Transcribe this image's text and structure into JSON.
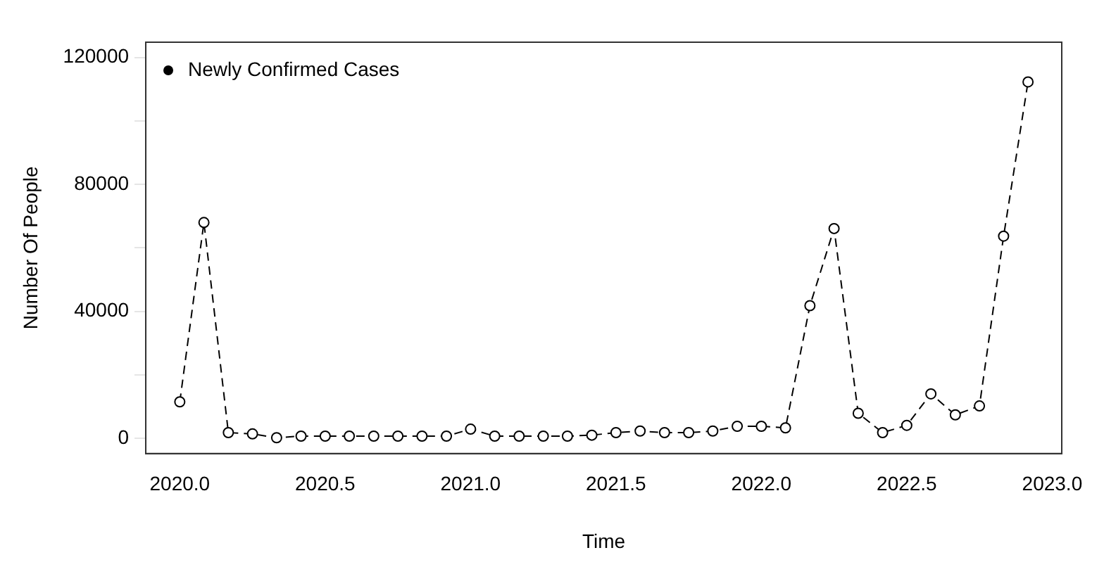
{
  "chart_data": {
    "type": "line",
    "xlabel": "Time",
    "ylabel": "Number Of People",
    "x": [
      2020.0,
      2020.083,
      2020.167,
      2020.25,
      2020.333,
      2020.417,
      2020.5,
      2020.583,
      2020.667,
      2020.75,
      2020.833,
      2020.917,
      2021.0,
      2021.083,
      2021.167,
      2021.25,
      2021.333,
      2021.417,
      2021.5,
      2021.583,
      2021.667,
      2021.75,
      2021.833,
      2021.917,
      2022.0,
      2022.083,
      2022.167,
      2022.25,
      2022.333,
      2022.417,
      2022.5,
      2022.583,
      2022.667,
      2022.75,
      2022.833,
      2022.917
    ],
    "series": [
      {
        "name": "Newly Confirmed Cases",
        "color": "#000000",
        "values": [
          11500,
          68000,
          1800,
          1400,
          200,
          700,
          700,
          700,
          700,
          700,
          700,
          700,
          2900,
          700,
          700,
          700,
          700,
          1000,
          1800,
          2300,
          1800,
          1800,
          2300,
          3800,
          3800,
          3300,
          41800,
          66100,
          7900,
          1800,
          4100,
          14000,
          7400,
          10200,
          63700,
          112300
        ]
      }
    ],
    "xlim": [
      2019.883,
      2023.033
    ],
    "ylim": [
      -4800,
      124800
    ],
    "xticks": [
      {
        "value": 2020,
        "label": "2020.0"
      },
      {
        "value": 2020.5,
        "label": "2020.5"
      },
      {
        "value": 2021,
        "label": "2021.0"
      },
      {
        "value": 2021.5,
        "label": "2021.5"
      },
      {
        "value": 2022,
        "label": "2022.0"
      },
      {
        "value": 2022.5,
        "label": "2022.5"
      },
      {
        "value": 2023,
        "label": "2023.0"
      }
    ],
    "yticks": [
      0,
      {
        "value": 20000,
        "label": null
      },
      40000,
      {
        "value": 60000,
        "label": null
      },
      80000,
      {
        "value": 100000,
        "label": null
      },
      120000
    ],
    "grid": false,
    "legend": "top left",
    "marker": "circle",
    "line_style": "dashed"
  }
}
